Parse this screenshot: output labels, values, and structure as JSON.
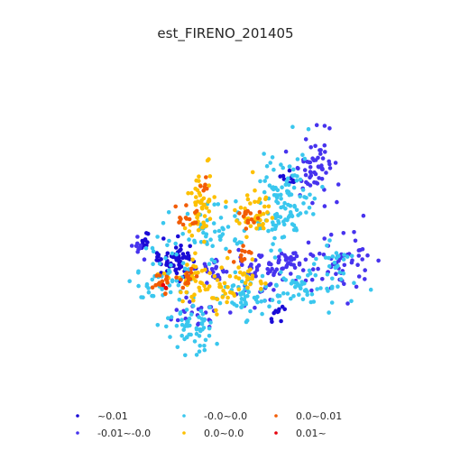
{
  "chart_data": {
    "type": "scatter",
    "title": "est_FIRENO_201405",
    "xlabel": "",
    "ylabel": "",
    "axes_visible": false,
    "grid": false,
    "legend_position": "bottom",
    "series": [
      {
        "name": "~0.01",
        "color": "#1a0bd6",
        "clusters": [
          {
            "cx": 0.32,
            "cy": 0.6,
            "sx": 0.03,
            "sy": 0.03,
            "n": 70
          },
          {
            "cx": 0.22,
            "cy": 0.53,
            "sx": 0.01,
            "sy": 0.015,
            "n": 12
          },
          {
            "cx": 0.65,
            "cy": 0.78,
            "sx": 0.012,
            "sy": 0.02,
            "n": 10
          },
          {
            "cx": 0.68,
            "cy": 0.33,
            "sx": 0.012,
            "sy": 0.015,
            "n": 10
          }
        ]
      },
      {
        "name": "-0.01~-0.0",
        "color": "#4733ee",
        "clusters": [
          {
            "cx": 0.77,
            "cy": 0.28,
            "sx": 0.03,
            "sy": 0.055,
            "n": 60
          },
          {
            "cx": 0.58,
            "cy": 0.64,
            "sx": 0.04,
            "sy": 0.05,
            "n": 45
          },
          {
            "cx": 0.69,
            "cy": 0.6,
            "sx": 0.04,
            "sy": 0.03,
            "n": 35
          },
          {
            "cx": 0.85,
            "cy": 0.6,
            "sx": 0.05,
            "sy": 0.05,
            "n": 55
          },
          {
            "cx": 0.44,
            "cy": 0.62,
            "sx": 0.02,
            "sy": 0.03,
            "n": 25
          },
          {
            "cx": 0.38,
            "cy": 0.77,
            "sx": 0.05,
            "sy": 0.03,
            "n": 25
          },
          {
            "cx": 0.2,
            "cy": 0.55,
            "sx": 0.01,
            "sy": 0.02,
            "n": 10
          }
        ]
      },
      {
        "name": "-0.0~0.0",
        "color": "#3ac7ee",
        "clusters": [
          {
            "cx": 0.67,
            "cy": 0.4,
            "sx": 0.05,
            "sy": 0.08,
            "n": 120
          },
          {
            "cx": 0.44,
            "cy": 0.5,
            "sx": 0.05,
            "sy": 0.05,
            "n": 50
          },
          {
            "cx": 0.37,
            "cy": 0.82,
            "sx": 0.04,
            "sy": 0.05,
            "n": 60
          },
          {
            "cx": 0.28,
            "cy": 0.62,
            "sx": 0.05,
            "sy": 0.06,
            "n": 50
          },
          {
            "cx": 0.73,
            "cy": 0.68,
            "sx": 0.08,
            "sy": 0.04,
            "n": 60
          },
          {
            "cx": 0.55,
            "cy": 0.72,
            "sx": 0.05,
            "sy": 0.04,
            "n": 50
          },
          {
            "cx": 0.82,
            "cy": 0.6,
            "sx": 0.03,
            "sy": 0.03,
            "n": 20
          }
        ]
      },
      {
        "name": "0.0~0.0",
        "color": "#fdc000",
        "clusters": [
          {
            "cx": 0.4,
            "cy": 0.4,
            "sx": 0.03,
            "sy": 0.07,
            "n": 55
          },
          {
            "cx": 0.57,
            "cy": 0.43,
            "sx": 0.03,
            "sy": 0.04,
            "n": 40
          },
          {
            "cx": 0.38,
            "cy": 0.66,
            "sx": 0.04,
            "sy": 0.03,
            "n": 40
          },
          {
            "cx": 0.55,
            "cy": 0.66,
            "sx": 0.03,
            "sy": 0.03,
            "n": 25
          },
          {
            "cx": 0.47,
            "cy": 0.72,
            "sx": 0.03,
            "sy": 0.03,
            "n": 20
          }
        ]
      },
      {
        "name": "0.0~0.01",
        "color": "#f25c05",
        "clusters": [
          {
            "cx": 0.35,
            "cy": 0.45,
            "sx": 0.02,
            "sy": 0.02,
            "n": 15
          },
          {
            "cx": 0.55,
            "cy": 0.45,
            "sx": 0.02,
            "sy": 0.02,
            "n": 15
          },
          {
            "cx": 0.27,
            "cy": 0.67,
            "sx": 0.015,
            "sy": 0.02,
            "n": 15
          },
          {
            "cx": 0.35,
            "cy": 0.65,
            "sx": 0.02,
            "sy": 0.02,
            "n": 15
          },
          {
            "cx": 0.53,
            "cy": 0.57,
            "sx": 0.02,
            "sy": 0.015,
            "n": 12
          },
          {
            "cx": 0.41,
            "cy": 0.33,
            "sx": 0.01,
            "sy": 0.02,
            "n": 6
          }
        ]
      },
      {
        "name": "0.01~",
        "color": "#e6000c",
        "clusters": [
          {
            "cx": 0.28,
            "cy": 0.68,
            "sx": 0.005,
            "sy": 0.005,
            "n": 2
          }
        ]
      }
    ]
  }
}
